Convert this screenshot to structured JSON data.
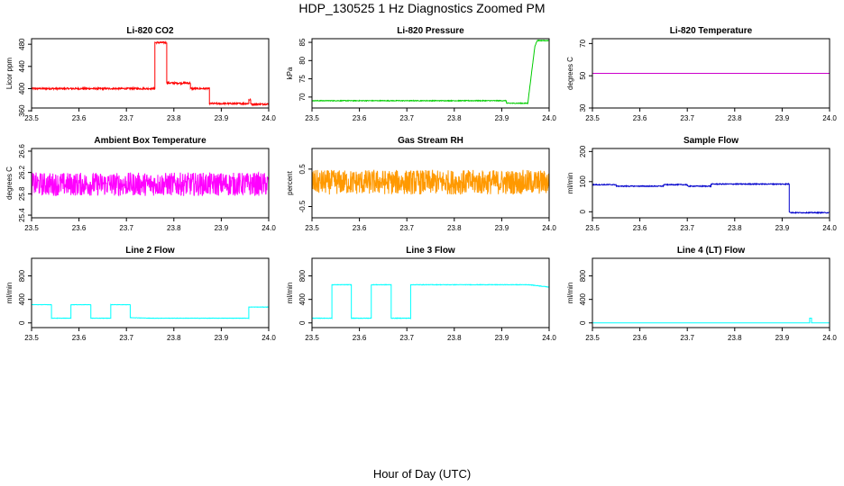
{
  "title": "HDP_130525  1 Hz Diagnostics Zoomed PM",
  "xlabel": "Hour of Day (UTC)",
  "chart_data": [
    {
      "type": "line",
      "title": "Li-820 CO2",
      "ylabel": "Licor ppm",
      "color": "#ff0000",
      "xlim": [
        23.5,
        24.0
      ],
      "ylim": [
        365,
        490
      ],
      "xticks": [
        "23.5",
        "23.6",
        "23.7",
        "23.8",
        "23.9",
        "24.0"
      ],
      "yticks": [
        360,
        400,
        440,
        480
      ],
      "noise": 1.5,
      "series": [
        {
          "x": [
            23.5,
            23.76,
            23.76,
            23.785,
            23.785,
            23.835,
            23.835,
            23.875,
            23.875,
            23.958,
            23.958,
            23.962,
            23.962,
            24.0
          ],
          "y": [
            400,
            400,
            483,
            483,
            410,
            410,
            400,
            400,
            373,
            373,
            380,
            380,
            372,
            372
          ]
        }
      ]
    },
    {
      "type": "line",
      "title": "Li-820 Pressure",
      "ylabel": "kPa",
      "color": "#00cc00",
      "xlim": [
        23.5,
        24.0
      ],
      "ylim": [
        67,
        86
      ],
      "xticks": [
        "23.5",
        "23.6",
        "23.7",
        "23.8",
        "23.9",
        "24.0"
      ],
      "yticks": [
        70,
        75,
        80,
        85
      ],
      "noise": 0.1,
      "series": [
        {
          "x": [
            23.5,
            23.91,
            23.91,
            23.955,
            23.97,
            23.975,
            24.0
          ],
          "y": [
            69,
            69,
            68.3,
            68.3,
            84,
            85.5,
            85.5
          ]
        }
      ]
    },
    {
      "type": "line",
      "title": "Li-820 Temperature",
      "ylabel": "degrees C",
      "color": "#cc00cc",
      "xlim": [
        23.5,
        24.0
      ],
      "ylim": [
        30,
        73
      ],
      "xticks": [
        "23.5",
        "23.6",
        "23.7",
        "23.8",
        "23.9",
        "24.0"
      ],
      "yticks": [
        30,
        50,
        70
      ],
      "noise": 0,
      "series": [
        {
          "x": [
            23.5,
            24.0
          ],
          "y": [
            51.5,
            51.5
          ]
        }
      ]
    },
    {
      "type": "line",
      "title": "Ambient Box Temperature",
      "ylabel": "degrees C",
      "color": "#ff00ff",
      "xlim": [
        23.5,
        24.0
      ],
      "ylim": [
        25.35,
        26.65
      ],
      "xticks": [
        "23.5",
        "23.6",
        "23.7",
        "23.8",
        "23.9",
        "24.0"
      ],
      "yticks": [
        25.4,
        25.8,
        26.2,
        26.6
      ],
      "noise": 0.22,
      "series": [
        {
          "x": [
            23.5,
            24.0
          ],
          "y": [
            25.98,
            25.98
          ]
        }
      ]
    },
    {
      "type": "line",
      "title": "Gas Stream RH",
      "ylabel": "percent",
      "color": "#ff9900",
      "xlim": [
        23.5,
        24.0
      ],
      "ylim": [
        -0.8,
        1.05
      ],
      "xticks": [
        "23.5",
        "23.6",
        "23.7",
        "23.8",
        "23.9",
        "24.0"
      ],
      "yticks": [
        -0.5,
        0.5
      ],
      "noise": 0.33,
      "series": [
        {
          "x": [
            23.5,
            24.0
          ],
          "y": [
            0.15,
            0.15
          ]
        }
      ]
    },
    {
      "type": "line",
      "title": "Sample Flow",
      "ylabel": "ml/min",
      "color": "#0000cc",
      "xlim": [
        23.5,
        24.0
      ],
      "ylim": [
        -20,
        210
      ],
      "xticks": [
        "23.5",
        "23.6",
        "23.7",
        "23.8",
        "23.9",
        "24.0"
      ],
      "yticks": [
        0,
        100,
        200
      ],
      "noise": 1.5,
      "series": [
        {
          "x": [
            23.5,
            23.55,
            23.55,
            23.65,
            23.65,
            23.7,
            23.7,
            23.75,
            23.75,
            23.915,
            23.915,
            23.92,
            24.0
          ],
          "y": [
            90,
            90,
            85,
            85,
            90,
            90,
            85,
            85,
            92,
            92,
            0,
            -3,
            -3
          ]
        }
      ]
    },
    {
      "type": "line",
      "title": "Line 2 Flow",
      "ylabel": "ml/min",
      "color": "#00ffff",
      "xlim": [
        23.5,
        24.0
      ],
      "ylim": [
        -80,
        1100
      ],
      "xticks": [
        "23.5",
        "23.6",
        "23.7",
        "23.8",
        "23.9",
        "24.0"
      ],
      "yticks": [
        0,
        400,
        800
      ],
      "noise": 3,
      "series": [
        {
          "x": [
            23.5,
            23.5,
            23.542,
            23.542,
            23.583,
            23.583,
            23.625,
            23.625,
            23.667,
            23.667,
            23.708,
            23.708,
            23.75,
            23.958,
            23.958,
            24.0
          ],
          "y": [
            100,
            310,
            310,
            80,
            80,
            310,
            310,
            80,
            80,
            310,
            310,
            90,
            80,
            80,
            270,
            270
          ]
        }
      ]
    },
    {
      "type": "line",
      "title": "Line 3 Flow",
      "ylabel": "ml/min",
      "color": "#00ffff",
      "xlim": [
        23.5,
        24.0
      ],
      "ylim": [
        -80,
        1100
      ],
      "xticks": [
        "23.5",
        "23.6",
        "23.7",
        "23.8",
        "23.9",
        "24.0"
      ],
      "yticks": [
        0,
        400,
        800
      ],
      "noise": 4,
      "series": [
        {
          "x": [
            23.5,
            23.5,
            23.5,
            23.542,
            23.542,
            23.583,
            23.583,
            23.625,
            23.625,
            23.667,
            23.667,
            23.708,
            23.708,
            23.958,
            24.0
          ],
          "y": [
            640,
            640,
            80,
            80,
            650,
            650,
            80,
            80,
            650,
            650,
            80,
            80,
            650,
            650,
            610
          ]
        }
      ]
    },
    {
      "type": "line",
      "title": "Line 4 (LT) Flow",
      "ylabel": "ml/min",
      "color": "#00ffff",
      "xlim": [
        23.5,
        24.0
      ],
      "ylim": [
        -80,
        1100
      ],
      "xticks": [
        "23.5",
        "23.6",
        "23.7",
        "23.8",
        "23.9",
        "24.0"
      ],
      "yticks": [
        0,
        400,
        800
      ],
      "noise": 0,
      "series": [
        {
          "x": [
            23.5,
            23.958,
            23.958,
            23.962,
            23.962,
            24.0
          ],
          "y": [
            0,
            0,
            80,
            80,
            0,
            0
          ]
        }
      ]
    }
  ]
}
